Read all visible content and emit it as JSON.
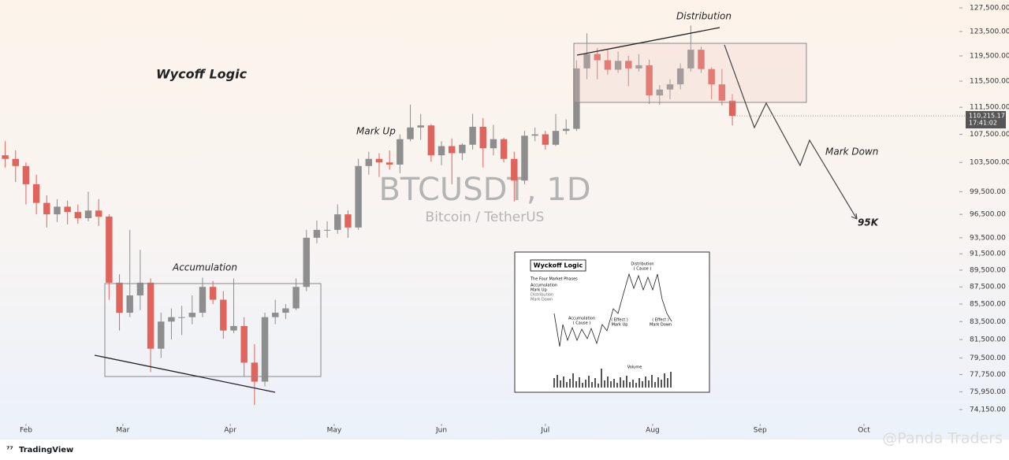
{
  "chart_data": {
    "type": "candlestick",
    "title": "BTCUSDT, 1D",
    "subtitle": "Bitcoin / TetherUS",
    "ohlc": [
      [
        104500,
        106500,
        102800,
        104000
      ],
      [
        104000,
        105200,
        100800,
        103000
      ],
      [
        103000,
        103500,
        97800,
        100500
      ],
      [
        100500,
        101800,
        96500,
        98000
      ],
      [
        98000,
        99000,
        94800,
        96500
      ],
      [
        96500,
        98500,
        95500,
        97500
      ],
      [
        97500,
        98300,
        95200,
        96800
      ],
      [
        96800,
        97800,
        95300,
        96000
      ],
      [
        96000,
        99500,
        95600,
        97000
      ],
      [
        97000,
        98500,
        95000,
        96200
      ],
      [
        96200,
        96500,
        86000,
        88000
      ],
      [
        88000,
        89000,
        82500,
        84500
      ],
      [
        84500,
        94500,
        84000,
        86500
      ],
      [
        86500,
        92000,
        84800,
        88000
      ],
      [
        88000,
        88500,
        78000,
        80500
      ],
      [
        80500,
        84500,
        79500,
        83500
      ],
      [
        83500,
        85000,
        81500,
        84000
      ],
      [
        84000,
        85300,
        82000,
        84000
      ],
      [
        84000,
        86500,
        83200,
        84500
      ],
      [
        84500,
        88600,
        84000,
        87500
      ],
      [
        87500,
        88200,
        85500,
        86000
      ],
      [
        86000,
        87000,
        81600,
        82500
      ],
      [
        82500,
        88500,
        82200,
        83000
      ],
      [
        83000,
        84000,
        77500,
        79000
      ],
      [
        79000,
        81000,
        74600,
        77000
      ],
      [
        77000,
        84500,
        76500,
        84000
      ],
      [
        84000,
        86000,
        83200,
        84500
      ],
      [
        84500,
        85500,
        83800,
        85000
      ],
      [
        85000,
        88500,
        84800,
        87500
      ],
      [
        87500,
        94500,
        87000,
        93500
      ],
      [
        93500,
        95700,
        92800,
        94500
      ],
      [
        94500,
        95600,
        93500,
        94500
      ],
      [
        94500,
        97800,
        94000,
        96500
      ],
      [
        96500,
        97000,
        93500,
        94800
      ],
      [
        94800,
        104000,
        94500,
        103000
      ],
      [
        103000,
        105000,
        101800,
        104000
      ],
      [
        104000,
        104800,
        101500,
        103500
      ],
      [
        103500,
        105200,
        102500,
        103200
      ],
      [
        103200,
        107500,
        102000,
        106800
      ],
      [
        106800,
        111900,
        106500,
        108500
      ],
      [
        108500,
        110500,
        106700,
        108800
      ],
      [
        108800,
        109000,
        103600,
        104500
      ],
      [
        104500,
        106500,
        103100,
        105800
      ],
      [
        105800,
        106900,
        100500,
        104800
      ],
      [
        104800,
        106200,
        103800,
        106000
      ],
      [
        106000,
        110500,
        105300,
        108600
      ],
      [
        108600,
        109900,
        102800,
        105500
      ],
      [
        105500,
        108900,
        104500,
        106800
      ],
      [
        106800,
        107000,
        103500,
        104000
      ],
      [
        104000,
        105000,
        98200,
        101000
      ],
      [
        101000,
        108000,
        100500,
        107300
      ],
      [
        107300,
        108500,
        106500,
        107500
      ],
      [
        107500,
        108000,
        105300,
        106000
      ],
      [
        106000,
        110500,
        105800,
        108000
      ],
      [
        108000,
        109700,
        107500,
        108300
      ],
      [
        108300,
        118800,
        108000,
        117500
      ],
      [
        117500,
        123200,
        115800,
        119800
      ],
      [
        119800,
        120800,
        115800,
        118800
      ],
      [
        118800,
        120500,
        116500,
        117300
      ],
      [
        117300,
        120200,
        116800,
        118700
      ],
      [
        118700,
        119500,
        114700,
        117500
      ],
      [
        117500,
        119800,
        117000,
        118000
      ],
      [
        118000,
        118900,
        112000,
        113300
      ],
      [
        113300,
        114900,
        111900,
        114200
      ],
      [
        114200,
        115800,
        112700,
        115000
      ],
      [
        115000,
        118300,
        114200,
        117500
      ],
      [
        117500,
        124500,
        117000,
        120500
      ],
      [
        120500,
        121000,
        116800,
        117400
      ],
      [
        117400,
        117700,
        112700,
        115000
      ],
      [
        115000,
        117400,
        111800,
        112500
      ],
      [
        112500,
        113500,
        108800,
        110215.17
      ]
    ],
    "up_color": "#8e8e8e",
    "down_color": "#e0635c",
    "log_scale": true,
    "ylim": [
      74150,
      127500
    ],
    "yticks": [
      {
        "value": 127500,
        "label": "127,500.00"
      },
      {
        "value": 123500,
        "label": "123,500.00"
      },
      {
        "value": 119500,
        "label": "119,500.00"
      },
      {
        "value": 115500,
        "label": "115,500.00"
      },
      {
        "value": 111500,
        "label": "111,500.00"
      },
      {
        "value": 107500,
        "label": "107,500.00"
      },
      {
        "value": 103500,
        "label": "103,500.00"
      },
      {
        "value": 99500,
        "label": "99,500.00"
      },
      {
        "value": 96500,
        "label": "96,500.00"
      },
      {
        "value": 93500,
        "label": "93,500.00"
      },
      {
        "value": 91500,
        "label": "91,500.00"
      },
      {
        "value": 89500,
        "label": "89,500.00"
      },
      {
        "value": 87500,
        "label": "87,500.00"
      },
      {
        "value": 85500,
        "label": "85,500.00"
      },
      {
        "value": 83500,
        "label": "83,500.00"
      },
      {
        "value": 81500,
        "label": "81,500.00"
      },
      {
        "value": 79500,
        "label": "79,500.00"
      },
      {
        "value": 77750,
        "label": "77,750.00"
      },
      {
        "value": 75950,
        "label": "75,950.00"
      },
      {
        "value": 74150,
        "label": "74,150.00"
      }
    ],
    "xlim": [
      -0.5,
      91.7
    ],
    "xticks": [
      {
        "value": 2,
        "label": "Feb"
      },
      {
        "value": 11.33,
        "label": "Mar"
      },
      {
        "value": 21.67,
        "label": "Apr"
      },
      {
        "value": 31.67,
        "label": "May"
      },
      {
        "value": 42,
        "label": "Jun"
      },
      {
        "value": 52,
        "label": "Jul"
      },
      {
        "value": 62.33,
        "label": "Aug"
      },
      {
        "value": 72.67,
        "label": "Sep"
      },
      {
        "value": 82.67,
        "label": "Oct"
      }
    ],
    "last_price": {
      "value": 110215.17,
      "label": "110,215.17"
    },
    "last_time": "17:41:02",
    "annotations": {
      "logic": "Wycoff Logic",
      "accumulation": "Accumulation",
      "mark_up": "Mark Up",
      "distribution": "Distribution",
      "mark_down": "Mark Down",
      "target": "95K"
    }
  },
  "inset": {
    "title": "Wyckoff Logic",
    "subtitle": "The Four Market Phases",
    "phases": [
      "Accumulation",
      "Mark Up",
      "Distribution",
      "Mark Down"
    ],
    "accumulation": "Accumulation",
    "distribution": "Distribution",
    "cause": "( Cause )",
    "effect": "( Effect )",
    "mark_up": "Mark Up",
    "mark_down": "Mark Down",
    "volume": "Volume"
  },
  "footer": {
    "brand": "TradingView",
    "watermark": "@Panda Traders"
  }
}
